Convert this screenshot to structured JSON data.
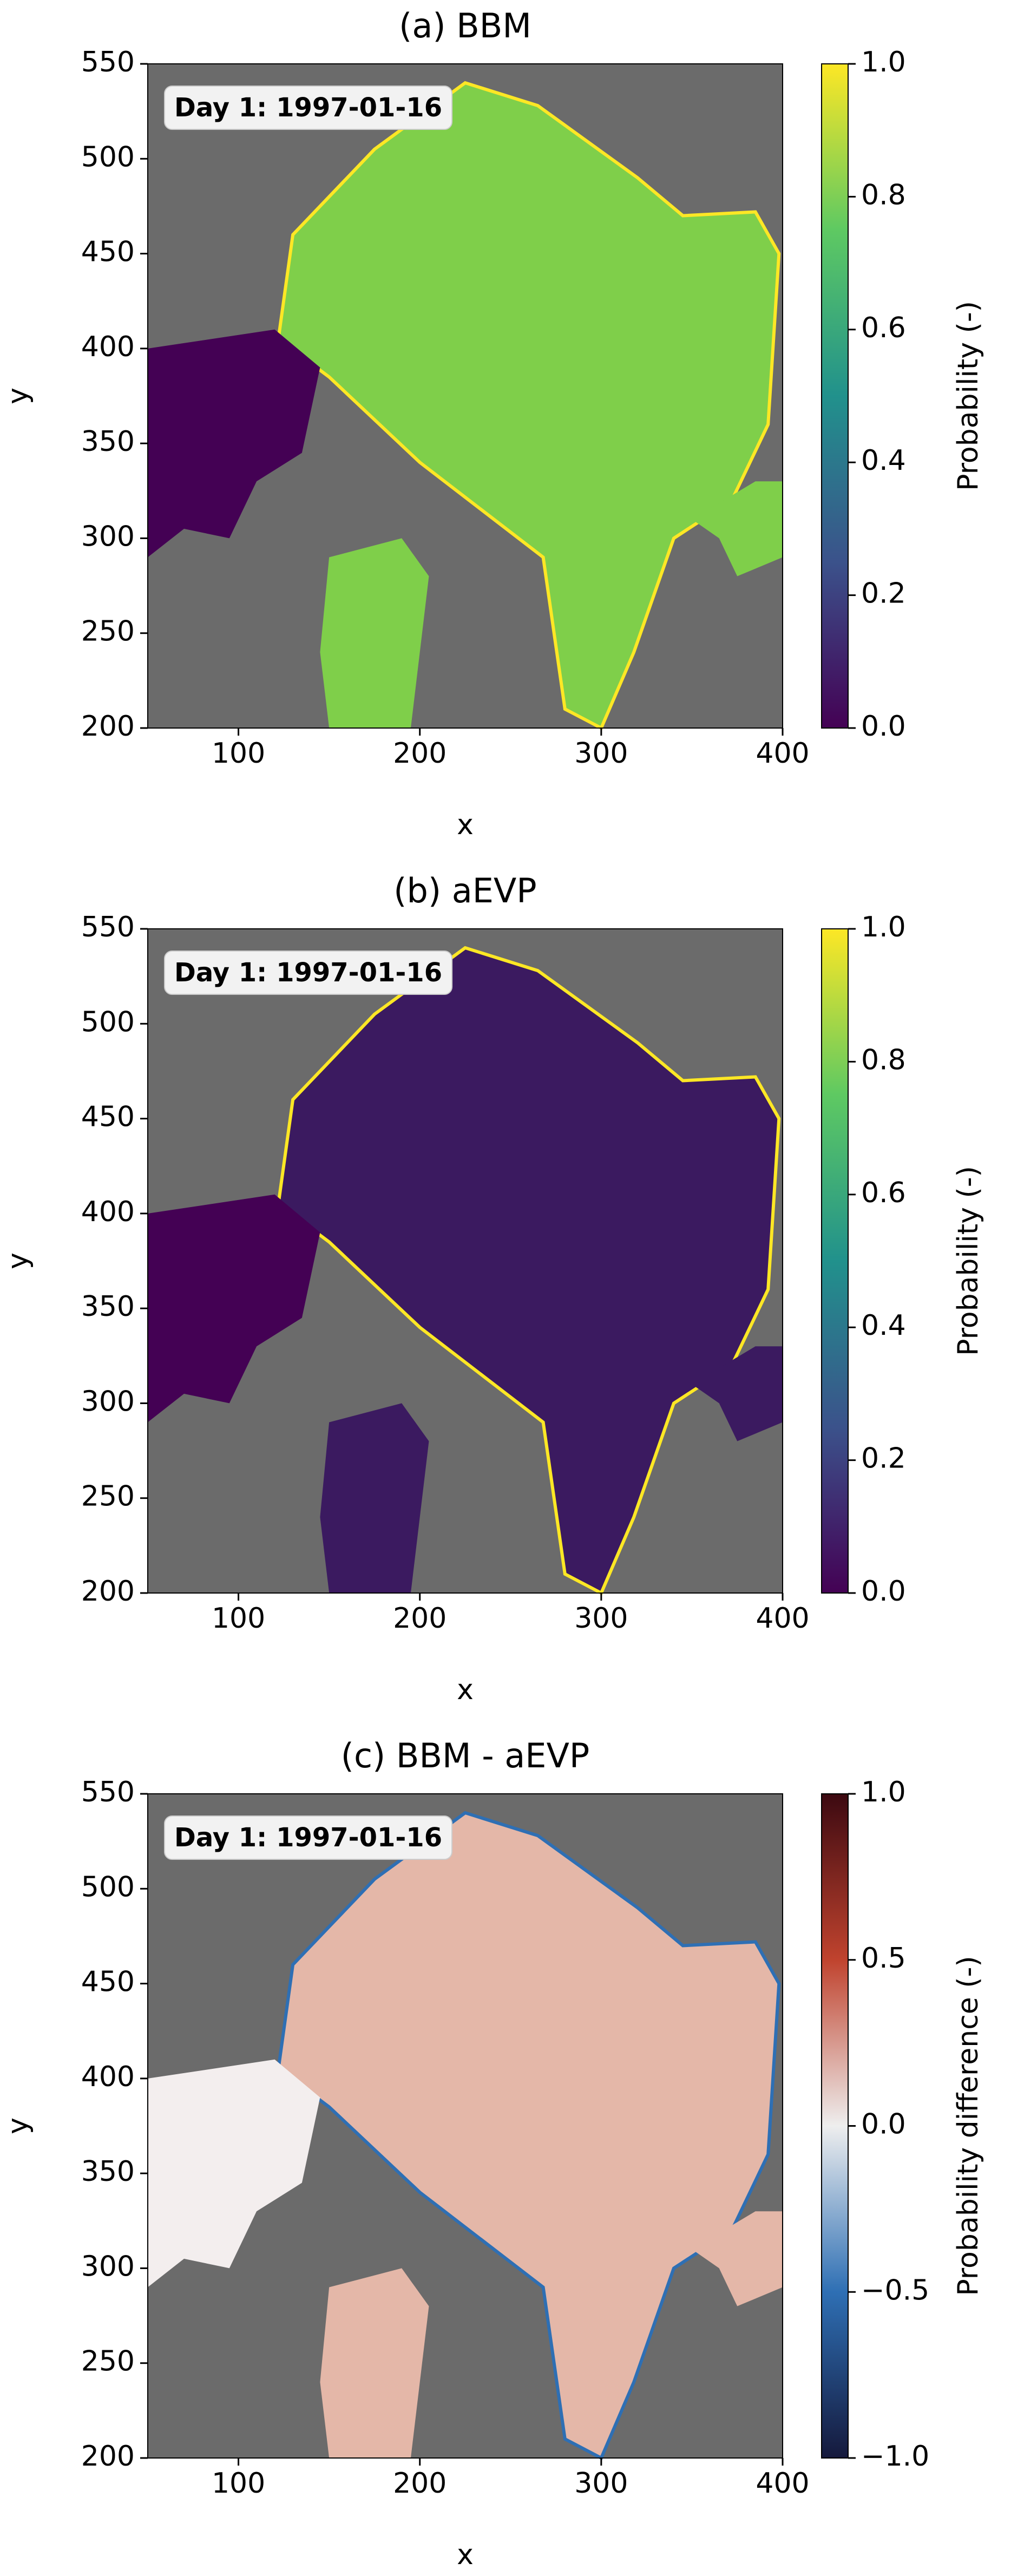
{
  "chart_data": [
    {
      "type": "heatmap",
      "title": "(a) BBM",
      "xlabel": "x",
      "ylabel": "y",
      "annotation": "Day 1: 1997-01-16",
      "xlim": [
        50,
        400
      ],
      "ylim": [
        200,
        550
      ],
      "xticks": [
        100,
        200,
        300,
        400
      ],
      "yticks": [
        200,
        250,
        300,
        350,
        400,
        450,
        500,
        550
      ],
      "colorbar": {
        "label": "Probability (-)",
        "lim": [
          0,
          1
        ],
        "ticks": [
          {
            "value": 0,
            "label": "0.0"
          },
          {
            "value": 0.2,
            "label": "0.2"
          },
          {
            "value": 0.4,
            "label": "0.4"
          },
          {
            "value": 0.6,
            "label": "0.6"
          },
          {
            "value": 0.8,
            "label": "0.8"
          },
          {
            "value": 1,
            "label": "1.0"
          }
        ],
        "colors": [
          "#440154",
          "#3b528b",
          "#21918c",
          "#5ec962",
          "#fde725"
        ]
      }
    },
    {
      "type": "heatmap",
      "title": "(b) aEVP",
      "xlabel": "x",
      "ylabel": "y",
      "annotation": "Day 1: 1997-01-16",
      "xlim": [
        50,
        400
      ],
      "ylim": [
        200,
        550
      ],
      "xticks": [
        100,
        200,
        300,
        400
      ],
      "yticks": [
        200,
        250,
        300,
        350,
        400,
        450,
        500,
        550
      ],
      "colorbar": {
        "label": "Probability (-)",
        "lim": [
          0,
          1
        ],
        "ticks": [
          {
            "value": 0,
            "label": "0.0"
          },
          {
            "value": 0.2,
            "label": "0.2"
          },
          {
            "value": 0.4,
            "label": "0.4"
          },
          {
            "value": 0.6,
            "label": "0.6"
          },
          {
            "value": 0.8,
            "label": "0.8"
          },
          {
            "value": 1,
            "label": "1.0"
          }
        ],
        "colors": [
          "#440154",
          "#3b528b",
          "#21918c",
          "#5ec962",
          "#fde725"
        ]
      }
    },
    {
      "type": "heatmap",
      "title": "(c) BBM - aEVP",
      "xlabel": "x",
      "ylabel": "y",
      "annotation": "Day 1: 1997-01-16",
      "xlim": [
        50,
        400
      ],
      "ylim": [
        200,
        550
      ],
      "xticks": [
        100,
        200,
        300,
        400
      ],
      "yticks": [
        200,
        250,
        300,
        350,
        400,
        450,
        500,
        550
      ],
      "colorbar": {
        "label": "Probability difference (-)",
        "lim": [
          -1,
          1
        ],
        "ticks": [
          {
            "value": -1,
            "label": "−1.0"
          },
          {
            "value": -0.5,
            "label": "−0.5"
          },
          {
            "value": 0,
            "label": "0.0"
          },
          {
            "value": 0.5,
            "label": "0.5"
          },
          {
            "value": 1,
            "label": "1.0"
          }
        ],
        "colors": [
          "#15193c",
          "#2e6fb4",
          "#eeeeee",
          "#c0432e",
          "#3c0911"
        ]
      }
    }
  ]
}
